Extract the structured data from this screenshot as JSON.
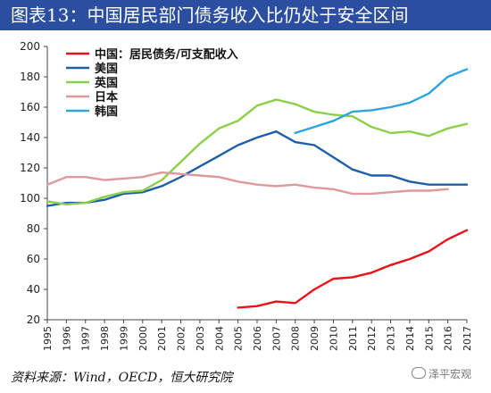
{
  "title": "图表13：中国居民部门债务收入比仍处于安全区间",
  "source": "资料来源：Wind，OECD，恒大研究院",
  "watermark": "泽平宏观",
  "colors": {
    "title_bar": "#2b4ea0",
    "china": "#e8131a",
    "us": "#1f5fa8",
    "uk": "#8ccf4a",
    "japan": "#dc9a9a",
    "korea": "#2ea3df"
  },
  "chart_data": {
    "type": "line",
    "title": "",
    "xlabel": "",
    "ylabel": "",
    "ylim": [
      20,
      200
    ],
    "yticks": [
      20,
      40,
      60,
      80,
      100,
      120,
      140,
      160,
      180,
      200
    ],
    "xlim": [
      1995,
      2017
    ],
    "xticks": [
      1995,
      1996,
      1997,
      1998,
      1999,
      2000,
      2001,
      2002,
      2003,
      2004,
      2005,
      2006,
      2007,
      2008,
      2009,
      2010,
      2011,
      2012,
      2013,
      2014,
      2015,
      2016,
      2017
    ],
    "grid": false,
    "legend": "top-left",
    "series": [
      {
        "name": "中国：居民债务/可支配收入",
        "color": "#e8131a",
        "x": [
          2005,
          2006,
          2007,
          2008,
          2009,
          2010,
          2011,
          2012,
          2013,
          2014,
          2015,
          2016,
          2017
        ],
        "y": [
          28,
          29,
          32,
          31,
          40,
          47,
          48,
          51,
          56,
          60,
          65,
          73,
          79
        ]
      },
      {
        "name": "美国",
        "color": "#1f5fa8",
        "x": [
          1995,
          1996,
          1997,
          1998,
          1999,
          2000,
          2001,
          2002,
          2003,
          2004,
          2005,
          2006,
          2007,
          2008,
          2009,
          2010,
          2011,
          2012,
          2013,
          2014,
          2015,
          2016,
          2017
        ],
        "y": [
          95,
          97,
          97,
          99,
          103,
          104,
          108,
          114,
          121,
          128,
          135,
          140,
          144,
          137,
          135,
          127,
          119,
          115,
          115,
          111,
          109,
          109,
          109
        ]
      },
      {
        "name": "英国",
        "color": "#8ccf4a",
        "x": [
          1995,
          1996,
          1997,
          1998,
          1999,
          2000,
          2001,
          2002,
          2003,
          2004,
          2005,
          2006,
          2007,
          2008,
          2009,
          2010,
          2011,
          2012,
          2013,
          2014,
          2015,
          2016,
          2017
        ],
        "y": [
          98,
          96,
          97,
          101,
          104,
          105,
          112,
          124,
          136,
          146,
          151,
          161,
          165,
          162,
          157,
          155,
          154,
          147,
          143,
          144,
          141,
          146,
          149
        ]
      },
      {
        "name": "日本",
        "color": "#dc9a9a",
        "x": [
          1995,
          1996,
          1997,
          1998,
          1999,
          2000,
          2001,
          2002,
          2003,
          2004,
          2005,
          2006,
          2007,
          2008,
          2009,
          2010,
          2011,
          2012,
          2013,
          2014,
          2015,
          2016
        ],
        "y": [
          109,
          114,
          114,
          112,
          113,
          114,
          117,
          116,
          115,
          114,
          111,
          109,
          108,
          109,
          107,
          106,
          103,
          103,
          104,
          105,
          105,
          106
        ]
      },
      {
        "name": "韩国",
        "color": "#2ea3df",
        "x": [
          2008,
          2009,
          2010,
          2011,
          2012,
          2013,
          2014,
          2015,
          2016,
          2017
        ],
        "y": [
          143,
          147,
          151,
          157,
          158,
          160,
          163,
          169,
          180,
          185
        ]
      }
    ]
  }
}
